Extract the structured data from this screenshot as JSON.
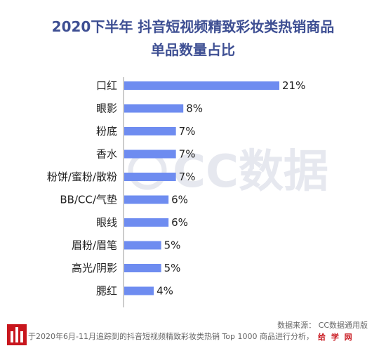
{
  "title": {
    "line1": "2020下半年 抖音短视频精致彩妆类热销商品",
    "line2": "单品数量占比"
  },
  "watermark": {
    "text": "CC数据"
  },
  "source": "数据来源：  CC数据通用版",
  "footnote": "于2020年6月-11月追踪到的抖音短视频精致彩妆类热销 Top 1000 商品进行分析，",
  "brand": "给 学 网",
  "colors": {
    "bar": "#6e8cf0",
    "title": "#3e4f93"
  },
  "chart_data": {
    "type": "bar",
    "orientation": "horizontal",
    "categories": [
      "口红",
      "眼影",
      "粉底",
      "香水",
      "粉饼/蜜粉/散粉",
      "BB/CC/气垫",
      "眼线",
      "眉粉/眉笔",
      "高光/阴影",
      "腮红"
    ],
    "values": [
      21,
      8,
      7,
      7,
      7,
      6,
      6,
      5,
      5,
      4
    ],
    "value_labels": [
      "21%",
      "8%",
      "7%",
      "7%",
      "7%",
      "6%",
      "6%",
      "5%",
      "5%",
      "4%"
    ],
    "unit": "%",
    "title": "2020下半年 抖音短视频精致彩妆类热销商品 单品数量占比",
    "xlabel": "",
    "ylabel": "",
    "xlim": [
      0,
      21
    ],
    "grid": false,
    "legend": "none"
  }
}
